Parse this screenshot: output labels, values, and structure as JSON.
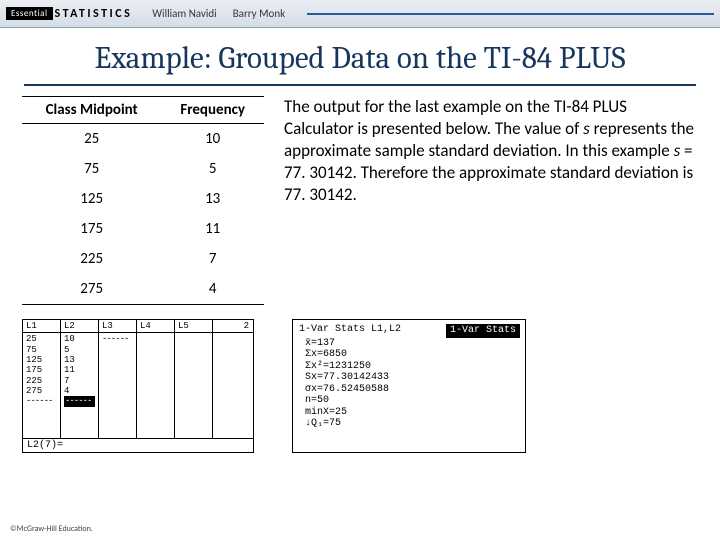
{
  "topbar": {
    "logo_before": "Essential",
    "logo_after": "STATISTICS",
    "author1": "William Navidi",
    "author2": "Barry Monk"
  },
  "title": "Example: Grouped Data on the TI-84 PLUS",
  "table": {
    "head_midpoint": "Class Midpoint",
    "head_freq": "Frequency",
    "rows": [
      {
        "m": "25",
        "f": "10"
      },
      {
        "m": "75",
        "f": "5"
      },
      {
        "m": "125",
        "f": "13"
      },
      {
        "m": "175",
        "f": "11"
      },
      {
        "m": "225",
        "f": "7"
      },
      {
        "m": "275",
        "f": "4"
      }
    ]
  },
  "para": {
    "t1": "The output for the last example on the TI-84 PLUS Calculator is presented below. The value of ",
    "s": "s",
    "t2": " represents the approximate sample standard deviation. In this example ",
    "s2": "s",
    "t3": " = 77. 30142. Therefore the approximate standard deviation is 77. 30142."
  },
  "calc1": {
    "headers": [
      "L1",
      "L2",
      "L3",
      "L4",
      "L5",
      "2"
    ],
    "L1": [
      "25",
      "75",
      "125",
      "175",
      "225",
      "275",
      "------"
    ],
    "L2": [
      "10",
      "5",
      "13",
      "11",
      "7",
      "4"
    ],
    "L2_hilite": "------",
    "L3": [
      "",
      "------"
    ],
    "footer": "L2(7)="
  },
  "calc2": {
    "cmd": "1-Var Stats L1,L2",
    "tag": "1-Var Stats",
    "lines": [
      "x̄=137",
      "Σx=6850",
      "Σx²=1231250",
      "Sx=77.30142433",
      "σx=76.52450588",
      "n=50",
      "minX=25",
      "↓Q₁=75"
    ]
  },
  "copyright": "©McGraw-Hill Education."
}
